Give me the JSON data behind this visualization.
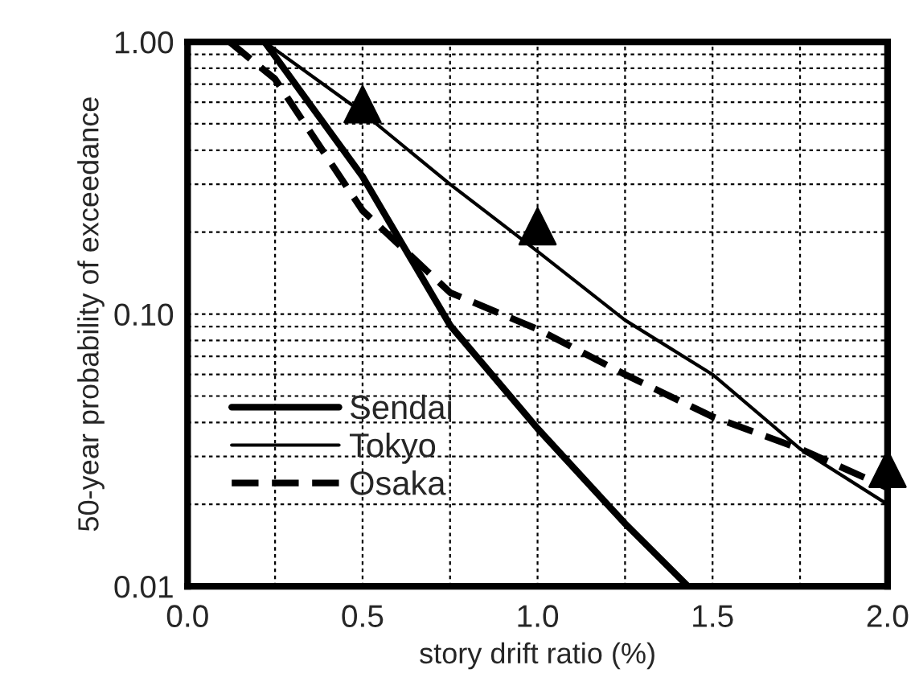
{
  "chart_data": {
    "type": "line",
    "xlabel": "story drift ratio (%)",
    "ylabel": "50-year probability of exceedance",
    "xlim": [
      0.0,
      2.0
    ],
    "xticks": [
      {
        "value": 0.0,
        "label": "0.0"
      },
      {
        "value": 0.5,
        "label": "0.5"
      },
      {
        "value": 1.0,
        "label": "1.0"
      },
      {
        "value": 1.5,
        "label": "1.5"
      },
      {
        "value": 2.0,
        "label": "2.0"
      }
    ],
    "ylim": [
      0.01,
      1.0
    ],
    "yticks": [
      {
        "value": 0.01,
        "label": "0.01"
      },
      {
        "value": 0.1,
        "label": "0.10"
      },
      {
        "value": 1.0,
        "label": "1.00"
      }
    ],
    "log": "y",
    "grid": true,
    "legend": "bottom left",
    "series": [
      {
        "name": "Sendai",
        "color": "#000000",
        "line_style": "solid",
        "x": [
          0.22,
          0.5,
          0.75,
          1.0,
          1.25,
          1.43
        ],
        "values": [
          1.0,
          0.32,
          0.091,
          0.038,
          0.017,
          0.01
        ]
      },
      {
        "name": "Tokyo",
        "color": "#000000",
        "line_style": "solid",
        "x": [
          0.22,
          0.5,
          0.75,
          1.0,
          1.25,
          1.5,
          1.75,
          2.0
        ],
        "values": [
          1.0,
          0.55,
          0.3,
          0.17,
          0.095,
          0.06,
          0.032,
          0.02
        ]
      },
      {
        "name": "Osaka",
        "color": "#000000",
        "line_style": "dashed",
        "x": [
          0.12,
          0.25,
          0.5,
          0.75,
          1.0,
          1.25,
          1.5,
          1.75,
          2.0
        ],
        "values": [
          1.0,
          0.73,
          0.24,
          0.12,
          0.088,
          0.06,
          0.042,
          0.032,
          0.023
        ]
      },
      {
        "type": "scatter",
        "color": "#000000",
        "marker": "triangle",
        "x": [
          0.5,
          1.0,
          2.0
        ],
        "values": [
          0.59,
          0.21,
          0.027
        ]
      }
    ]
  }
}
